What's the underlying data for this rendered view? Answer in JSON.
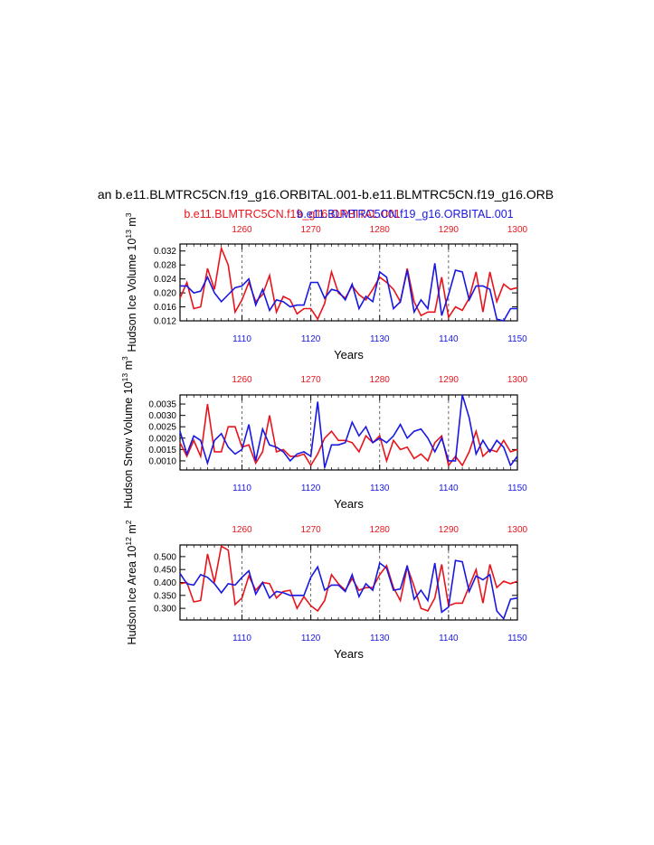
{
  "figure": {
    "main_title": "an b.e11.BLMTRC5CN.f19_g16.ORBITAL.001-b.e11.BLMTRC5CN.f19_g16.ORB",
    "legend_red": "b.e11.BLMTRC5CN.f19_g16.ORBITAL.001",
    "legend_blue": "b.e11.BLMTRC5CN.f19_g16.ORBITAL.001",
    "colors": {
      "red": "#e8141c",
      "blue": "#1818e0",
      "axis": "#000000"
    }
  },
  "chart_data": [
    {
      "type": "line",
      "ylabel_main": "Hudson Ice Volume 10",
      "ylabel_exp": "13",
      "ylabel_unit": " m",
      "ylabel_unit_exp": "3",
      "xlabel": "Years",
      "x_range_bottom": [
        1101,
        1150
      ],
      "x_ticks_bottom": [
        "1110",
        "1120",
        "1130",
        "1140",
        "1150"
      ],
      "x_ticks_top": [
        "1260",
        "1270",
        "1280",
        "1290",
        "1300"
      ],
      "ylim": [
        0.012,
        0.034
      ],
      "y_ticks": [
        "0.012",
        "0.016",
        "0.020",
        "0.024",
        "0.028",
        "0.032"
      ],
      "y_tick_values": [
        0.012,
        0.016,
        0.02,
        0.024,
        0.028,
        0.032
      ],
      "series": [
        {
          "name": "red",
          "values": [
            0.0185,
            0.023,
            0.0155,
            0.016,
            0.027,
            0.021,
            0.0328,
            0.028,
            0.0145,
            0.018,
            0.023,
            0.0175,
            0.0195,
            0.025,
            0.0145,
            0.019,
            0.018,
            0.014,
            0.0155,
            0.0155,
            0.0125,
            0.017,
            0.026,
            0.02,
            0.0185,
            0.022,
            0.0195,
            0.018,
            0.021,
            0.0245,
            0.023,
            0.021,
            0.0175,
            0.027,
            0.0175,
            0.0135,
            0.0145,
            0.0145,
            0.0245,
            0.013,
            0.016,
            0.015,
            0.0185,
            0.026,
            0.0145,
            0.026,
            0.0175,
            0.0225,
            0.021,
            0.0215
          ]
        },
        {
          "name": "blue",
          "values": [
            0.022,
            0.022,
            0.02,
            0.0205,
            0.0245,
            0.02,
            0.0175,
            0.0195,
            0.0215,
            0.022,
            0.024,
            0.0165,
            0.021,
            0.015,
            0.018,
            0.0175,
            0.016,
            0.0165,
            0.0165,
            0.023,
            0.023,
            0.0185,
            0.021,
            0.0205,
            0.018,
            0.0225,
            0.0155,
            0.019,
            0.0175,
            0.026,
            0.0245,
            0.0155,
            0.0175,
            0.0265,
            0.0145,
            0.018,
            0.0155,
            0.0285,
            0.0135,
            0.0195,
            0.0265,
            0.026,
            0.018,
            0.022,
            0.022,
            0.021,
            0.0125,
            0.012,
            0.0155,
            0.0155
          ]
        }
      ]
    },
    {
      "type": "line",
      "ylabel_main": "Hudson Snow Volume 10",
      "ylabel_exp": "13",
      "ylabel_unit": " m",
      "ylabel_unit_exp": "3",
      "xlabel": "Years",
      "x_range_bottom": [
        1101,
        1150
      ],
      "x_ticks_bottom": [
        "1110",
        "1120",
        "1130",
        "1140",
        "1150"
      ],
      "x_ticks_top": [
        "1260",
        "1270",
        "1280",
        "1290",
        "1300"
      ],
      "ylim": [
        0.0006,
        0.0039
      ],
      "y_ticks": [
        "0.0010",
        "0.0015",
        "0.0020",
        "0.0025",
        "0.0030",
        "0.0035"
      ],
      "y_tick_values": [
        0.001,
        0.0015,
        0.002,
        0.0025,
        0.003,
        0.0035
      ],
      "series": [
        {
          "name": "red",
          "values": [
            0.0018,
            0.0012,
            0.0019,
            0.0012,
            0.0035,
            0.0014,
            0.0014,
            0.0025,
            0.0025,
            0.0016,
            0.0017,
            0.0009,
            0.0014,
            0.003,
            0.0014,
            0.0015,
            0.0012,
            0.0012,
            0.0013,
            0.0008,
            0.0013,
            0.002,
            0.0023,
            0.0019,
            0.0019,
            0.0018,
            0.0014,
            0.0021,
            0.0018,
            0.0021,
            0.001,
            0.0019,
            0.0015,
            0.0016,
            0.0011,
            0.0013,
            0.001,
            0.0018,
            0.0021,
            0.0008,
            0.0012,
            0.0008,
            0.0014,
            0.0023,
            0.0012,
            0.0015,
            0.0014,
            0.0019,
            0.0014,
            0.0015
          ]
        },
        {
          "name": "blue",
          "values": [
            0.0023,
            0.0013,
            0.0021,
            0.0019,
            0.0009,
            0.0019,
            0.0022,
            0.0016,
            0.0013,
            0.0015,
            0.0026,
            0.001,
            0.0024,
            0.0017,
            0.0016,
            0.0014,
            0.001,
            0.0013,
            0.0014,
            0.0012,
            0.0036,
            0.0007,
            0.0017,
            0.0017,
            0.0018,
            0.0027,
            0.0021,
            0.0025,
            0.0018,
            0.002,
            0.0018,
            0.0021,
            0.0026,
            0.002,
            0.0023,
            0.0024,
            0.002,
            0.0014,
            0.002,
            0.001,
            0.001,
            0.0039,
            0.0029,
            0.0013,
            0.0019,
            0.0014,
            0.0019,
            0.0016,
            0.0008,
            0.0012
          ]
        }
      ]
    },
    {
      "type": "line",
      "ylabel_main": "Hudson Ice Area 10",
      "ylabel_exp": "12",
      "ylabel_unit": " m",
      "ylabel_unit_exp": "2",
      "xlabel": "Years",
      "x_range_bottom": [
        1101,
        1150
      ],
      "x_ticks_bottom": [
        "1110",
        "1120",
        "1130",
        "1140",
        "1150"
      ],
      "x_ticks_top": [
        "1260",
        "1270",
        "1280",
        "1290",
        "1300"
      ],
      "ylim": [
        0.255,
        0.545
      ],
      "y_ticks": [
        "0.300",
        "0.350",
        "0.400",
        "0.450",
        "0.500"
      ],
      "y_tick_values": [
        0.3,
        0.35,
        0.4,
        0.45,
        0.5
      ],
      "series": [
        {
          "name": "red",
          "values": [
            0.395,
            0.4,
            0.325,
            0.33,
            0.51,
            0.4,
            0.54,
            0.525,
            0.315,
            0.34,
            0.425,
            0.37,
            0.4,
            0.395,
            0.34,
            0.365,
            0.37,
            0.3,
            0.345,
            0.31,
            0.29,
            0.33,
            0.43,
            0.395,
            0.37,
            0.415,
            0.37,
            0.38,
            0.38,
            0.43,
            0.465,
            0.38,
            0.33,
            0.46,
            0.385,
            0.3,
            0.29,
            0.34,
            0.47,
            0.31,
            0.32,
            0.32,
            0.385,
            0.45,
            0.32,
            0.47,
            0.38,
            0.405,
            0.395,
            0.405
          ]
        },
        {
          "name": "blue",
          "values": [
            0.435,
            0.395,
            0.39,
            0.43,
            0.42,
            0.395,
            0.36,
            0.395,
            0.39,
            0.42,
            0.445,
            0.355,
            0.4,
            0.34,
            0.365,
            0.36,
            0.35,
            0.35,
            0.35,
            0.42,
            0.46,
            0.37,
            0.39,
            0.39,
            0.365,
            0.43,
            0.345,
            0.395,
            0.37,
            0.475,
            0.455,
            0.37,
            0.375,
            0.465,
            0.335,
            0.37,
            0.33,
            0.475,
            0.285,
            0.305,
            0.485,
            0.48,
            0.365,
            0.425,
            0.41,
            0.43,
            0.29,
            0.26,
            0.335,
            0.34
          ]
        }
      ]
    }
  ]
}
